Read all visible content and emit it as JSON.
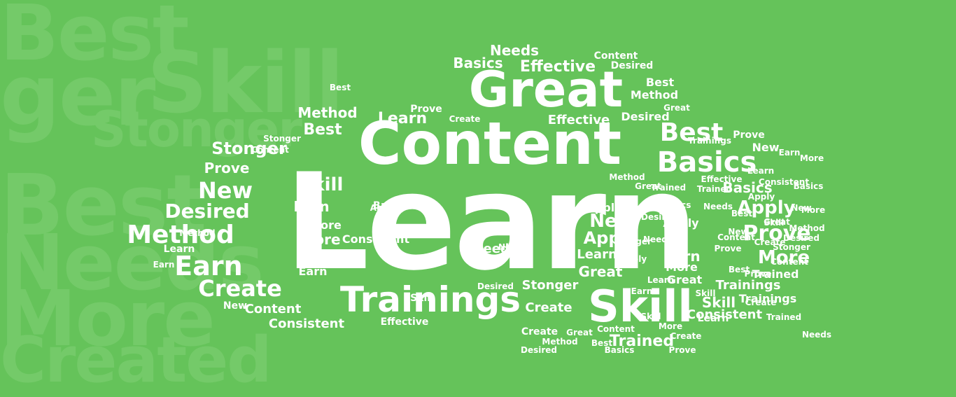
{
  "colors": {
    "background": "#65c35a",
    "background_words": "#74ca69",
    "words": "#ffffff"
  },
  "background_words": [
    "Best",
    "ger",
    "Skill",
    "Stonger",
    "Best",
    "Needs",
    "More",
    "Created"
  ],
  "words": [
    "Learn",
    "Content",
    "Great",
    "Trainings",
    "Skill",
    "Basics",
    "Best",
    "Method",
    "Earn",
    "Create",
    "New",
    "Desired",
    "Prove",
    "Stonger",
    "Apply",
    "More",
    "Consistent",
    "Effective",
    "Needs",
    "Trained",
    "Basics",
    "Learn",
    "Earn",
    "Apply",
    "Prove",
    "New",
    "More",
    "Skill",
    "Great",
    "Create",
    "Content",
    "Method",
    "Desired",
    "Best",
    "Stonger",
    "Needs",
    "Trainings",
    "Consistent",
    "Effective",
    "Trained",
    "Skill",
    "Apply",
    "Learn",
    "New",
    "Earn",
    "More",
    "Basics",
    "Method",
    "Create",
    "Prove",
    "Content",
    "Desired",
    "Best",
    "Great",
    "Needs",
    "Apply",
    "Learn",
    "Earn",
    "Skill",
    "New",
    "More",
    "Prove",
    "Trained",
    "Create",
    "Content",
    "Best",
    "Effective",
    "Stonger",
    "Consistent",
    "Basics",
    "Trainings",
    "Method",
    "Desired",
    "Great",
    "Needs",
    "Apply",
    "Learn",
    "Earn",
    "Skill",
    "New",
    "More",
    "Create",
    "Prove",
    "Content",
    "Best",
    "Trained",
    "Basics",
    "Great",
    "Method",
    "Desired",
    "Stonger",
    "Consistent",
    "Effective",
    "Needs",
    "Trainings",
    "Apply",
    "Learn",
    "Earn",
    "Skill",
    "New",
    "More",
    "Create",
    "Prove",
    "Content",
    "Best",
    "Trained",
    "Basics",
    "Great",
    "Method",
    "Desired",
    "Stonger",
    "Needs",
    "Apply",
    "Learn",
    "Earn",
    "Skill",
    "More",
    "Create",
    "Prove",
    "Content",
    "Best",
    "Basics",
    "Great",
    "Method",
    "Desired"
  ]
}
